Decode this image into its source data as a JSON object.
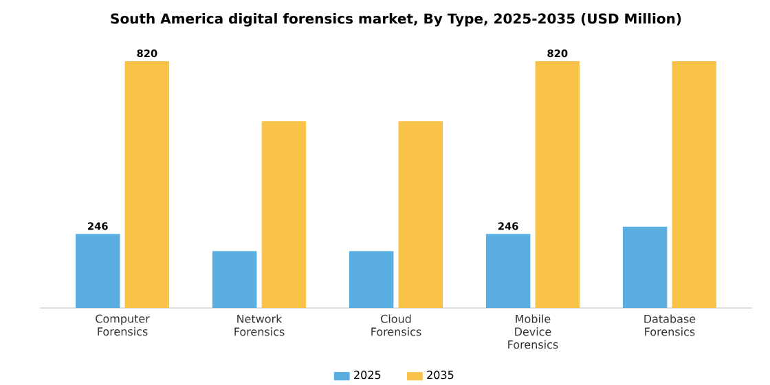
{
  "chart_data": {
    "type": "bar",
    "title": "South America digital forensics market, By Type, 2025-2035 (USD Million)",
    "categories": [
      "Computer Forensics",
      "Network Forensics",
      "Cloud Forensics",
      "Mobile Device Forensics",
      "Database Forensics"
    ],
    "series": [
      {
        "name": "2025",
        "color": "#5aafe0",
        "values": [
          246,
          189,
          189,
          246,
          270
        ],
        "value_labels": [
          "246",
          null,
          null,
          "246",
          null
        ]
      },
      {
        "name": "2035",
        "color": "#f9c34a",
        "values": [
          820,
          621,
          621,
          820,
          820
        ],
        "value_labels": [
          "820",
          null,
          null,
          "820",
          null
        ]
      }
    ],
    "tick_labels": "x",
    "legend": "bottom"
  }
}
